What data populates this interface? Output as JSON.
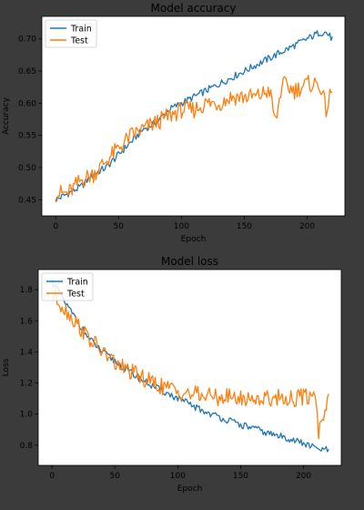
{
  "colors": {
    "train": "#1f77b4",
    "test": "#ff7f0e",
    "page_bg": "#3b3b3b",
    "plot_bg": "#ffffff"
  },
  "chart_data": [
    {
      "type": "line",
      "title": "Model accuracy",
      "xlabel": "Epoch",
      "ylabel": "Accuracy",
      "xlim": [
        -11,
        230
      ],
      "ylim": [
        0.425,
        0.735
      ],
      "xticks": [
        0,
        50,
        100,
        150,
        200
      ],
      "yticks": [
        0.45,
        0.5,
        0.55,
        0.6,
        0.65,
        0.7
      ],
      "ytick_labels": [
        "0.45",
        "0.50",
        "0.55",
        "0.60",
        "0.65",
        "0.70"
      ],
      "legend": "upper-left",
      "legend_entries": [
        "Train",
        "Test"
      ],
      "series": [
        {
          "name": "Train",
          "color": "#1f77b4",
          "x": [
            0,
            10,
            20,
            30,
            40,
            50,
            60,
            70,
            80,
            90,
            100,
            110,
            120,
            130,
            140,
            150,
            160,
            170,
            180,
            190,
            200,
            210,
            215,
            220
          ],
          "y": [
            0.45,
            0.46,
            0.47,
            0.49,
            0.5,
            0.52,
            0.54,
            0.56,
            0.57,
            0.59,
            0.6,
            0.61,
            0.62,
            0.63,
            0.64,
            0.65,
            0.66,
            0.67,
            0.68,
            0.69,
            0.7,
            0.71,
            0.71,
            0.7
          ]
        },
        {
          "name": "Test",
          "color": "#ff7f0e",
          "x": [
            0,
            10,
            20,
            30,
            40,
            50,
            60,
            70,
            80,
            90,
            100,
            110,
            120,
            130,
            140,
            150,
            160,
            170,
            175,
            180,
            190,
            200,
            210,
            215,
            220
          ],
          "y": [
            0.46,
            0.46,
            0.48,
            0.49,
            0.51,
            0.53,
            0.55,
            0.56,
            0.57,
            0.58,
            0.59,
            0.59,
            0.6,
            0.6,
            0.61,
            0.61,
            0.61,
            0.62,
            0.57,
            0.63,
            0.62,
            0.63,
            0.63,
            0.59,
            0.62
          ]
        }
      ]
    },
    {
      "type": "line",
      "title": "Model loss",
      "xlabel": "Epoch",
      "ylabel": "Loss",
      "xlim": [
        -11,
        230
      ],
      "ylim": [
        0.67,
        1.93
      ],
      "xticks": [
        0,
        50,
        100,
        150,
        200
      ],
      "yticks": [
        0.8,
        1.0,
        1.2,
        1.4,
        1.6,
        1.8
      ],
      "ytick_labels": [
        "0.8",
        "1.0",
        "1.2",
        "1.4",
        "1.6",
        "1.8"
      ],
      "legend": "upper-left",
      "legend_entries": [
        "Train",
        "Test"
      ],
      "series": [
        {
          "name": "Train",
          "color": "#1f77b4",
          "x": [
            0,
            10,
            20,
            30,
            40,
            50,
            60,
            70,
            80,
            90,
            100,
            110,
            120,
            130,
            140,
            150,
            160,
            170,
            180,
            190,
            200,
            210,
            215,
            220
          ],
          "y": [
            1.86,
            1.72,
            1.6,
            1.48,
            1.4,
            1.34,
            1.28,
            1.23,
            1.18,
            1.14,
            1.1,
            1.06,
            1.02,
            0.99,
            0.96,
            0.93,
            0.91,
            0.88,
            0.86,
            0.84,
            0.81,
            0.78,
            0.77,
            0.77
          ]
        },
        {
          "name": "Test",
          "color": "#ff7f0e",
          "x": [
            0,
            10,
            20,
            30,
            40,
            50,
            60,
            70,
            80,
            90,
            100,
            110,
            120,
            130,
            140,
            150,
            160,
            170,
            180,
            190,
            200,
            210,
            212,
            220
          ],
          "y": [
            1.78,
            1.68,
            1.58,
            1.48,
            1.4,
            1.33,
            1.28,
            1.24,
            1.2,
            1.17,
            1.15,
            1.13,
            1.12,
            1.11,
            1.11,
            1.1,
            1.1,
            1.1,
            1.11,
            1.1,
            1.11,
            1.12,
            0.88,
            1.13
          ]
        }
      ]
    }
  ]
}
